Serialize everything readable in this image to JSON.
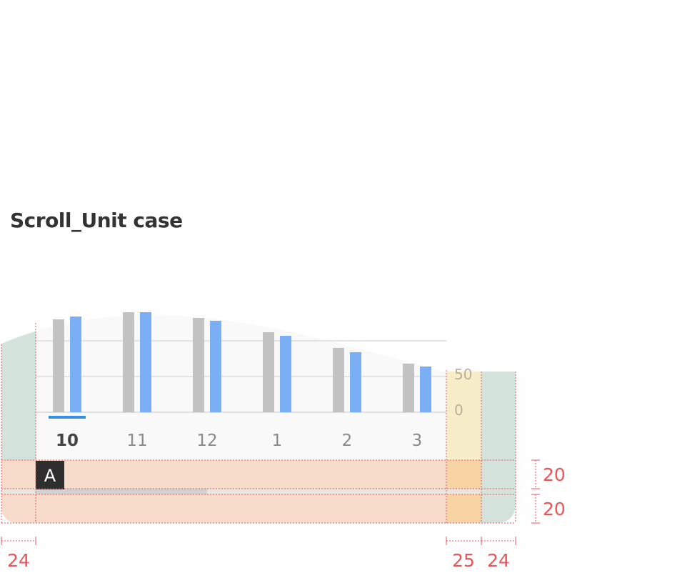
{
  "title": "Scroll_Unit case",
  "chart_data": {
    "type": "bar",
    "categories": [
      "10",
      "11",
      "12",
      "1",
      "2",
      "3"
    ],
    "selected_category": "10",
    "series": [
      {
        "values": [
          130,
          140,
          132,
          112,
          90,
          68
        ]
      },
      {
        "values": [
          134,
          140,
          128,
          107,
          84,
          64
        ]
      }
    ],
    "y_ticks": [
      "50",
      "0"
    ],
    "ylim": [
      0,
      150
    ],
    "grid": true,
    "colors": {
      "series_a": "#c2c2c2",
      "series_b": "#7aaef5",
      "selected_indicator": "#3a8ee6"
    }
  },
  "scroll_label": "A",
  "dimensions": {
    "left_margin": "24",
    "right_axis_width": "25",
    "right_margin": "24",
    "label_height": "20",
    "scroll_height": "20"
  },
  "colors": {
    "margin_zone": "#d4e2dc",
    "label_zone": "#f8dccb",
    "axis_zone": "#f8edc9",
    "axis_label_overlap": "#f8d3a4",
    "measure": "#e8555a",
    "scrollbar": "#cfd2d1"
  }
}
